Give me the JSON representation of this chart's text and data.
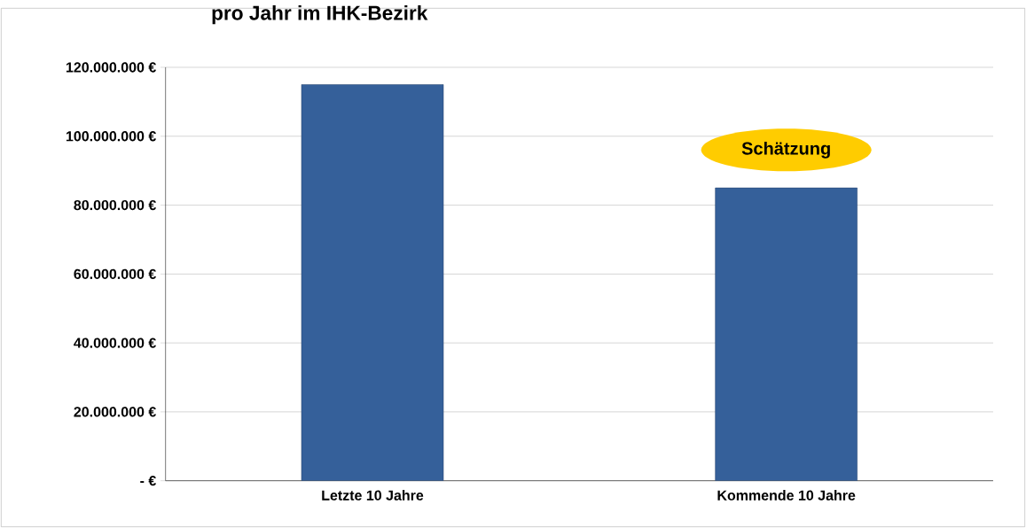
{
  "chart_data": {
    "type": "bar",
    "title": "pro Jahr im IHK-Bezirk",
    "categories": [
      "Letzte 10 Jahre",
      "Kommende 10 Jahre"
    ],
    "values": [
      115000000,
      85000000
    ],
    "color": "#35609a",
    "ylim": [
      0,
      120000000
    ],
    "yticks": [
      {
        "value": 0,
        "label": "-  €"
      },
      {
        "value": 20000000,
        "label": "20.000.000 €"
      },
      {
        "value": 40000000,
        "label": "40.000.000 €"
      },
      {
        "value": 60000000,
        "label": "60.000.000 €"
      },
      {
        "value": 80000000,
        "label": "80.000.000 €"
      },
      {
        "value": 100000000,
        "label": "100.000.000 €"
      },
      {
        "value": 120000000,
        "label": "120.000.000 €"
      }
    ],
    "grid": "y",
    "annotations": [
      "Schätzung"
    ]
  }
}
